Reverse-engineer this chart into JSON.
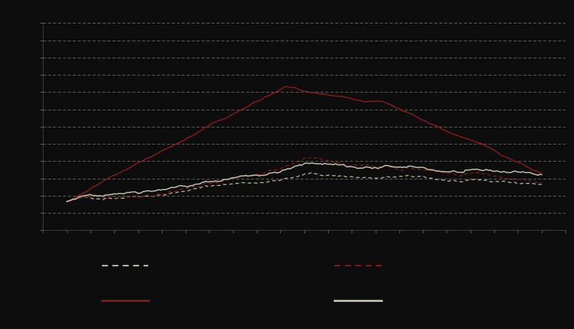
{
  "background_color": "#0d0d0d",
  "plot_bg_color": "#0d0d0d",
  "grid_color": "#888880",
  "gray_dashed_color": "#c0bfab",
  "darkred_dashed_color": "#8b1a1a",
  "darkred_solid_color": "#8b1a1a",
  "lightgray_solid_color": "#c8c6b0",
  "n_points": 250,
  "seed": 42
}
